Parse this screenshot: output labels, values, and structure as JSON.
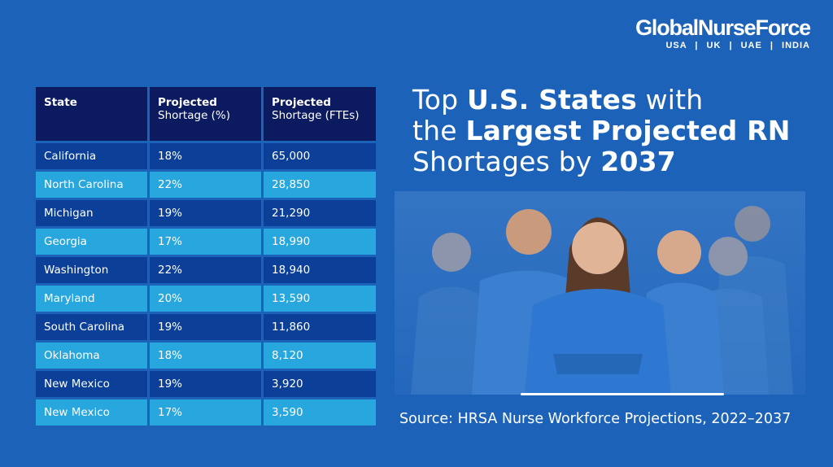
{
  "brand": {
    "name": "GlobalNurseForce",
    "regions": [
      "USA",
      "UK",
      "UAE",
      "INDIA"
    ]
  },
  "title": {
    "pre1": "Top ",
    "bold1": "U.S. States",
    "post1": " with",
    "pre2": "the ",
    "bold2": "Largest Projected RN",
    "pre3": "Shortages by ",
    "bold3": "2037"
  },
  "table": {
    "headers": [
      {
        "bold": "State",
        "sub": ""
      },
      {
        "bold": "Projected",
        "sub": "Shortage (%)"
      },
      {
        "bold": "Projected",
        "sub": "Shortage (FTEs)"
      }
    ],
    "rows": [
      [
        "California",
        "18%",
        "65,000"
      ],
      [
        "North Carolina",
        "22%",
        "28,850"
      ],
      [
        "Michigan",
        "19%",
        "21,290"
      ],
      [
        "Georgia",
        "17%",
        "18,990"
      ],
      [
        "Washington",
        "22%",
        "18,940"
      ],
      [
        "Maryland",
        "20%",
        "13,590"
      ],
      [
        "South Carolina",
        "19%",
        "11,860"
      ],
      [
        "Oklahoma",
        "18%",
        "8,120"
      ],
      [
        "New Mexico",
        "19%",
        "3,920"
      ],
      [
        "New Mexico",
        "17%",
        "3,590"
      ]
    ]
  },
  "source": "Source: HRSA Nurse Workforce Projections, 2022–2037",
  "colors": {
    "background": "#1d62b9",
    "header": "#0c1b5f",
    "row_dark": "#0b3f98",
    "row_light": "#28a6de"
  }
}
